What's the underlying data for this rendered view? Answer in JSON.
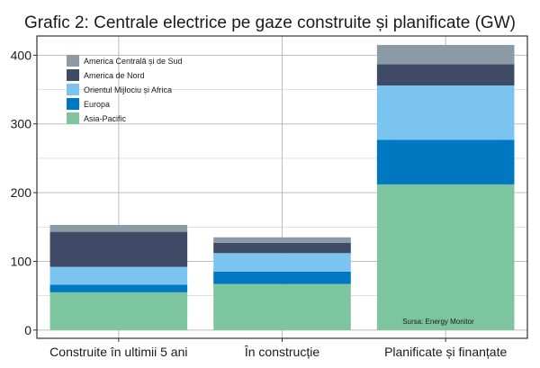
{
  "chart_data": {
    "type": "bar",
    "stacked": true,
    "title": "Grafic 2: Centrale electrice pe gaze construite și planificate (GW)",
    "xlabel": "",
    "ylabel": "",
    "categories": [
      "Construite în ultimii 5 ani",
      "În construcție",
      "Planificate și finanțate"
    ],
    "yticks": [
      0,
      100,
      200,
      300,
      400
    ],
    "ylim": [
      -12,
      428
    ],
    "grid": true,
    "legend_position": "top-left",
    "source": "Sursa: Energy Monitor",
    "series": [
      {
        "name": "Asia-Pacific",
        "color": "#7dc59f",
        "values": [
          55,
          67,
          212
        ]
      },
      {
        "name": "Europa",
        "color": "#0077c1",
        "values": [
          11,
          18,
          65
        ]
      },
      {
        "name": "Orientul Mijlociu și Africa",
        "color": "#7cc4f0",
        "values": [
          26,
          27,
          79
        ]
      },
      {
        "name": "America de Nord",
        "color": "#3e4a66",
        "values": [
          51,
          15,
          31
        ]
      },
      {
        "name": "America Centrală și de Sud",
        "color": "#8a9ba6",
        "values": [
          10,
          8,
          28
        ]
      }
    ]
  }
}
